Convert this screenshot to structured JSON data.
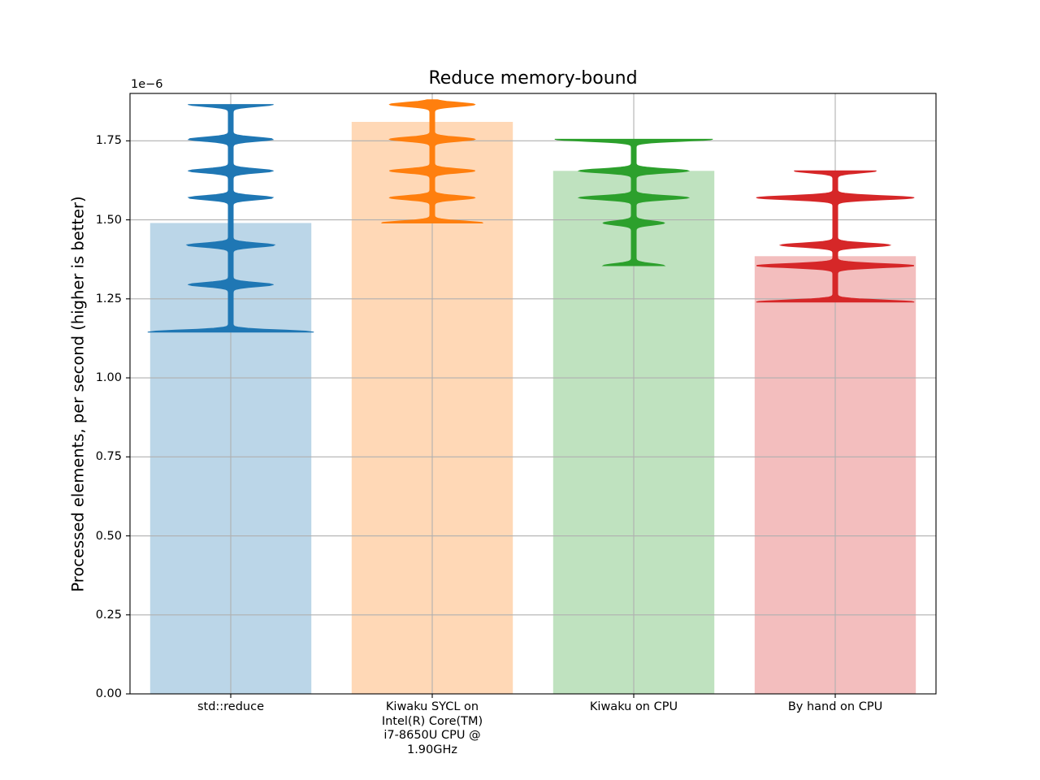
{
  "chart_data": {
    "type": "bar",
    "title": "Reduce memory-bound",
    "xlabel": "",
    "ylabel": "Processed elements, per second (higher is better)",
    "y_offset_label": "1e−6",
    "ylim": [
      0,
      1.9
    ],
    "yticks": [
      "0.00",
      "0.25",
      "0.50",
      "0.75",
      "1.00",
      "1.25",
      "1.50",
      "1.75"
    ],
    "grid": true,
    "categories": [
      "std::reduce",
      "Kiwaku SYCL on\nIntel(R) Core(TM)\ni7-8650U CPU @\n1.90GHz",
      "Kiwaku on CPU",
      "By hand on CPU"
    ],
    "values": [
      1.49,
      1.81,
      1.655,
      1.385
    ],
    "colors": [
      "#1f77b4",
      "#ff7f0e",
      "#2ca02c",
      "#d62728"
    ],
    "violins": [
      {
        "min": 1.145,
        "max": 1.865,
        "modes": [
          [
            1.145,
            1.0
          ],
          [
            1.295,
            0.5
          ],
          [
            1.42,
            0.52
          ],
          [
            1.57,
            0.5
          ],
          [
            1.655,
            0.5
          ],
          [
            1.755,
            0.5
          ],
          [
            1.865,
            0.5
          ]
        ]
      },
      {
        "min": 1.49,
        "max": 1.88,
        "modes": [
          [
            1.49,
            0.6
          ],
          [
            1.57,
            0.5
          ],
          [
            1.655,
            0.5
          ],
          [
            1.755,
            0.5
          ],
          [
            1.865,
            0.5
          ]
        ]
      },
      {
        "min": 1.355,
        "max": 1.755,
        "modes": [
          [
            1.355,
            0.35
          ],
          [
            1.49,
            0.35
          ],
          [
            1.57,
            0.65
          ],
          [
            1.655,
            0.65
          ],
          [
            1.755,
            0.95
          ]
        ]
      },
      {
        "min": 1.24,
        "max": 1.655,
        "modes": [
          [
            1.24,
            0.95
          ],
          [
            1.355,
            0.95
          ],
          [
            1.42,
            0.65
          ],
          [
            1.57,
            0.95
          ],
          [
            1.655,
            0.48
          ]
        ]
      }
    ]
  }
}
